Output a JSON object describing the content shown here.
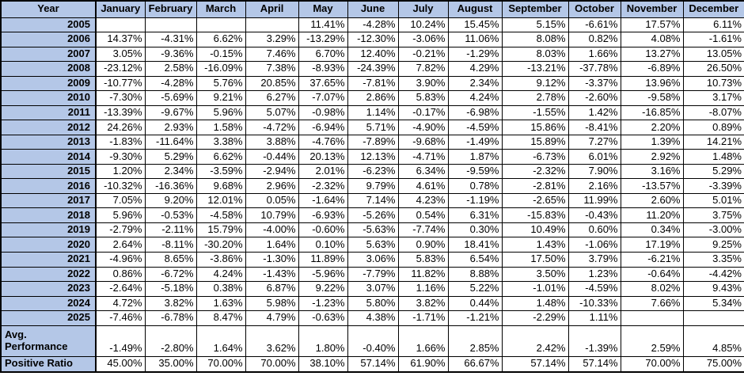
{
  "colors": {
    "header_bg": "#b4c7e7",
    "grid_border": "#000000",
    "cell_bg": "#ffffff",
    "text": "#000000"
  },
  "table": {
    "columns": [
      "Year",
      "January",
      "February",
      "March",
      "April",
      "May",
      "June",
      "July",
      "August",
      "September",
      "October",
      "November",
      "December"
    ],
    "rows": [
      {
        "year": "2005",
        "values": [
          "",
          "",
          "",
          "",
          "11.41%",
          "-4.28%",
          "10.24%",
          "15.45%",
          "5.15%",
          "-6.61%",
          "17.57%",
          "6.11%"
        ]
      },
      {
        "year": "2006",
        "values": [
          "14.37%",
          "-4.31%",
          "6.62%",
          "3.29%",
          "-13.29%",
          "-12.30%",
          "-3.06%",
          "11.06%",
          "8.08%",
          "0.82%",
          "4.08%",
          "-1.61%"
        ]
      },
      {
        "year": "2007",
        "values": [
          "3.05%",
          "-9.36%",
          "-0.15%",
          "7.46%",
          "6.70%",
          "12.40%",
          "-0.21%",
          "-1.29%",
          "8.03%",
          "1.66%",
          "13.27%",
          "13.05%"
        ]
      },
      {
        "year": "2008",
        "values": [
          "-23.12%",
          "2.58%",
          "-16.09%",
          "7.38%",
          "-8.93%",
          "-24.39%",
          "7.82%",
          "4.29%",
          "-13.21%",
          "-37.78%",
          "-6.89%",
          "26.50%"
        ]
      },
      {
        "year": "2009",
        "values": [
          "-10.77%",
          "-4.28%",
          "5.76%",
          "20.85%",
          "37.65%",
          "-7.81%",
          "3.90%",
          "2.34%",
          "9.12%",
          "-3.37%",
          "13.96%",
          "10.73%"
        ]
      },
      {
        "year": "2010",
        "values": [
          "-7.30%",
          "-5.69%",
          "9.21%",
          "6.27%",
          "-7.07%",
          "2.86%",
          "5.83%",
          "4.24%",
          "2.78%",
          "-2.60%",
          "-9.58%",
          "3.17%"
        ]
      },
      {
        "year": "2011",
        "values": [
          "-13.39%",
          "-9.67%",
          "5.96%",
          "5.07%",
          "-0.98%",
          "1.14%",
          "-0.17%",
          "-6.98%",
          "-1.55%",
          "1.42%",
          "-16.85%",
          "-8.07%"
        ]
      },
      {
        "year": "2012",
        "values": [
          "24.26%",
          "2.93%",
          "1.58%",
          "-4.72%",
          "-6.94%",
          "5.71%",
          "-4.90%",
          "-4.59%",
          "15.86%",
          "-8.41%",
          "2.20%",
          "0.89%"
        ]
      },
      {
        "year": "2013",
        "values": [
          "-1.83%",
          "-11.64%",
          "3.38%",
          "3.88%",
          "-4.76%",
          "-7.89%",
          "-9.68%",
          "-1.49%",
          "15.89%",
          "7.27%",
          "1.39%",
          "14.21%"
        ]
      },
      {
        "year": "2014",
        "values": [
          "-9.30%",
          "5.29%",
          "6.62%",
          "-0.44%",
          "20.13%",
          "12.13%",
          "-4.71%",
          "1.87%",
          "-6.73%",
          "6.01%",
          "2.92%",
          "1.48%"
        ]
      },
      {
        "year": "2015",
        "values": [
          "1.20%",
          "2.34%",
          "-3.59%",
          "-2.94%",
          "2.01%",
          "-6.23%",
          "6.34%",
          "-9.59%",
          "-2.32%",
          "7.90%",
          "3.16%",
          "5.29%"
        ]
      },
      {
        "year": "2016",
        "values": [
          "-10.32%",
          "-16.36%",
          "9.68%",
          "2.96%",
          "-2.32%",
          "9.79%",
          "4.61%",
          "0.78%",
          "-2.81%",
          "2.16%",
          "-13.57%",
          "-3.39%"
        ]
      },
      {
        "year": "2017",
        "values": [
          "7.05%",
          "9.20%",
          "12.01%",
          "0.05%",
          "-1.64%",
          "7.14%",
          "4.23%",
          "-1.19%",
          "-2.65%",
          "11.99%",
          "2.60%",
          "5.01%"
        ]
      },
      {
        "year": "2018",
        "values": [
          "5.96%",
          "-0.53%",
          "-4.58%",
          "10.79%",
          "-6.93%",
          "-5.26%",
          "0.54%",
          "6.31%",
          "-15.83%",
          "-0.43%",
          "11.20%",
          "3.75%"
        ]
      },
      {
        "year": "2019",
        "values": [
          "-2.79%",
          "-2.11%",
          "15.79%",
          "-4.00%",
          "-0.60%",
          "-5.63%",
          "-7.74%",
          "0.30%",
          "10.49%",
          "0.60%",
          "0.34%",
          "-3.00%"
        ]
      },
      {
        "year": "2020",
        "values": [
          "2.64%",
          "-8.11%",
          "-30.20%",
          "1.64%",
          "0.10%",
          "5.63%",
          "0.90%",
          "18.41%",
          "1.43%",
          "-1.06%",
          "17.19%",
          "9.25%"
        ]
      },
      {
        "year": "2021",
        "values": [
          "-4.96%",
          "8.65%",
          "-3.86%",
          "-1.30%",
          "11.89%",
          "3.06%",
          "5.83%",
          "6.54%",
          "17.50%",
          "3.79%",
          "-6.21%",
          "3.35%"
        ]
      },
      {
        "year": "2022",
        "values": [
          "0.86%",
          "-6.72%",
          "4.24%",
          "-1.43%",
          "-5.96%",
          "-7.79%",
          "11.82%",
          "8.88%",
          "3.50%",
          "1.23%",
          "-0.64%",
          "-4.42%"
        ]
      },
      {
        "year": "2023",
        "values": [
          "-2.64%",
          "-5.18%",
          "0.38%",
          "6.87%",
          "9.22%",
          "3.07%",
          "1.16%",
          "5.22%",
          "-1.01%",
          "-4.59%",
          "8.02%",
          "9.43%"
        ]
      },
      {
        "year": "2024",
        "values": [
          "4.72%",
          "3.82%",
          "1.63%",
          "5.98%",
          "-1.23%",
          "5.80%",
          "3.82%",
          "0.44%",
          "1.48%",
          "-10.33%",
          "7.66%",
          "5.34%"
        ]
      },
      {
        "year": "2025",
        "values": [
          "-7.46%",
          "-6.78%",
          "8.47%",
          "4.79%",
          "-0.63%",
          "4.38%",
          "-1.71%",
          "-1.21%",
          "-2.29%",
          "1.11%",
          "",
          ""
        ]
      }
    ],
    "summary": [
      {
        "label": "Avg. Performance",
        "values": [
          "-1.49%",
          "-2.80%",
          "1.64%",
          "3.62%",
          "1.80%",
          "-0.40%",
          "1.66%",
          "2.85%",
          "2.42%",
          "-1.39%",
          "2.59%",
          "4.85%"
        ]
      },
      {
        "label": "Positive Ratio",
        "values": [
          "45.00%",
          "35.00%",
          "70.00%",
          "70.00%",
          "38.10%",
          "57.14%",
          "61.90%",
          "66.67%",
          "57.14%",
          "57.14%",
          "70.00%",
          "75.00%"
        ]
      }
    ]
  }
}
